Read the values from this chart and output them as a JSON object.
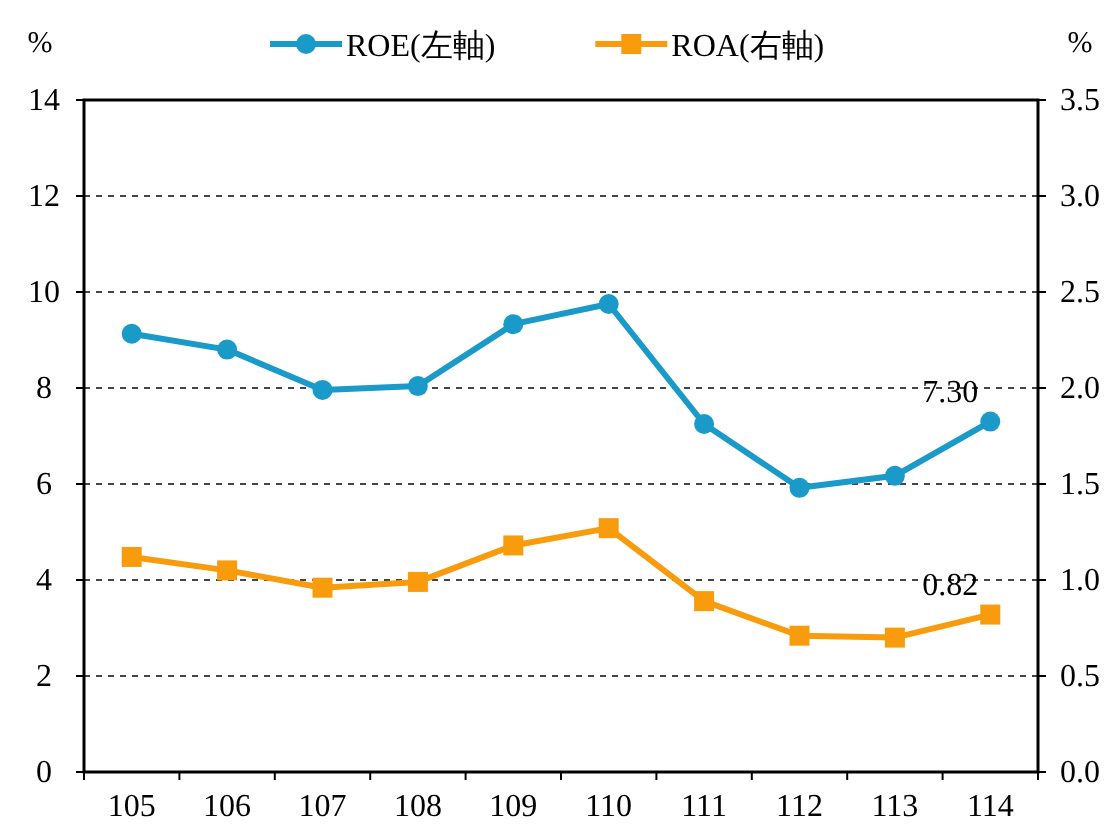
{
  "chart_data": {
    "type": "line",
    "ylabel": "%",
    "y2label": "%",
    "categories": [
      "105",
      "106",
      "107",
      "108",
      "109",
      "110",
      "111",
      "112",
      "113",
      "114"
    ],
    "series": [
      {
        "name": "ROE(左軸)",
        "color": "#1a9ac9",
        "marker": "circle",
        "values": [
          9.13,
          8.8,
          7.96,
          8.04,
          9.33,
          9.75,
          7.25,
          5.92,
          6.17,
          7.3
        ],
        "value_labels": [
          null,
          null,
          null,
          null,
          null,
          null,
          null,
          null,
          null,
          "7.30"
        ]
      },
      {
        "name": "ROA(右軸)",
        "color": "#f89c0e",
        "marker": "square",
        "axis": "y2",
        "values": [
          1.12,
          1.05,
          0.96,
          0.99,
          1.18,
          1.27,
          0.89,
          0.71,
          0.7,
          0.82
        ],
        "value_labels": [
          null,
          null,
          null,
          null,
          null,
          null,
          null,
          null,
          null,
          "0.82"
        ]
      }
    ],
    "ylim": [
      0,
      14
    ],
    "yticks": [
      0,
      2,
      4,
      6,
      8,
      10,
      12,
      14
    ],
    "y2lim": [
      0,
      3.5
    ],
    "y2ticks": [
      {
        "value": 0,
        "label": "0.0"
      },
      {
        "value": 0.5,
        "label": "0.5"
      },
      {
        "value": 1,
        "label": "1.0"
      },
      {
        "value": 1.5,
        "label": "1.5"
      },
      {
        "value": 2,
        "label": "2.0"
      },
      {
        "value": 2.5,
        "label": "2.5"
      },
      {
        "value": 3,
        "label": "3.0"
      },
      {
        "value": 3.5,
        "label": "3.5"
      }
    ],
    "grid": "y",
    "legend": "top",
    "line_style": "solid"
  }
}
